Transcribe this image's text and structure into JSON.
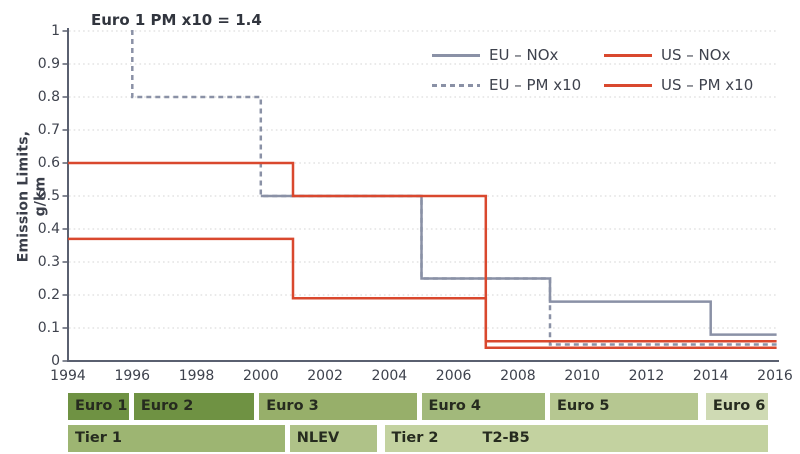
{
  "chart_data": {
    "type": "line",
    "title": "",
    "ylabel": "Emission Limits, g/km",
    "annotation": "Euro 1 PM x10 = 1.4",
    "xlim": [
      1994,
      2016
    ],
    "ylim": [
      0,
      1
    ],
    "x_ticks": [
      1994,
      1996,
      1998,
      2000,
      2002,
      2004,
      2006,
      2008,
      2010,
      2012,
      2014,
      2016
    ],
    "y_tick_values": [
      0,
      0.1,
      0.2,
      0.3,
      0.4,
      0.5,
      0.6,
      0.7,
      0.8,
      0.9,
      1
    ],
    "y_tick_labels": [
      "0",
      "0.1",
      "0.2",
      "0.3",
      "0.4",
      "0.5",
      "0.6",
      "0.7",
      "0.8",
      "0.9",
      "1"
    ],
    "grid": "horizontal dotted lines at every 0.1",
    "legend_position": "inside top-right, 2x2",
    "series": [
      {
        "name": "EU – NOx",
        "color": "#8A91A6",
        "dash": false,
        "points": [
          [
            2000,
            0.5
          ],
          [
            2005,
            0.5
          ],
          [
            2005,
            0.25
          ],
          [
            2009,
            0.25
          ],
          [
            2009,
            0.18
          ],
          [
            2014,
            0.18
          ],
          [
            2014,
            0.08
          ],
          [
            2016.05,
            0.08
          ]
        ]
      },
      {
        "name": "EU – PM x10",
        "color": "#8A91A6",
        "dash": true,
        "points": [
          [
            1996,
            1.003
          ],
          [
            1996,
            0.8
          ],
          [
            2000,
            0.8
          ],
          [
            2000,
            0.5
          ],
          [
            2005,
            0.5
          ],
          [
            2005,
            0.25
          ],
          [
            2009,
            0.25
          ],
          [
            2009,
            0.05
          ],
          [
            2016.05,
            0.05
          ]
        ],
        "note": "enters from above axis range; Euro 1 PM x10 = 1.4"
      },
      {
        "name": "US – PM x10",
        "color": "#D9482E",
        "dash": false,
        "points": [
          [
            1994,
            0.6
          ],
          [
            2001,
            0.6
          ],
          [
            2001,
            0.5
          ],
          [
            2007,
            0.5
          ],
          [
            2007,
            0.06
          ],
          [
            2016.05,
            0.06
          ]
        ]
      },
      {
        "name": "US – NOx",
        "color": "#D9482E",
        "dash": false,
        "points": [
          [
            1994,
            0.37
          ],
          [
            2001,
            0.37
          ],
          [
            2001,
            0.19
          ],
          [
            2007,
            0.19
          ],
          [
            2007,
            0.04
          ],
          [
            2016.05,
            0.04
          ]
        ]
      }
    ],
    "legend": {
      "items": [
        {
          "label": "EU – NOx",
          "swatch": "gray-solid"
        },
        {
          "label": "US – NOx",
          "swatch": "red-solid"
        },
        {
          "label": "EU – PM x10",
          "swatch": "gray-dashed"
        },
        {
          "label": "US – PM x10",
          "swatch": "red-solid"
        }
      ]
    },
    "timeline_bands": {
      "eu": [
        {
          "label": "Euro 1",
          "start": 1994.0,
          "end": 1995.9,
          "color": "#6F9243"
        },
        {
          "label": "Euro 2",
          "start": 1996.05,
          "end": 1999.8,
          "color": "#6F9243"
        },
        {
          "label": "Euro 3",
          "start": 1999.95,
          "end": 2004.85,
          "color": "#97AF6A"
        },
        {
          "label": "Euro 4",
          "start": 2005.0,
          "end": 2008.85,
          "color": "#A2B97B"
        },
        {
          "label": "Euro 5",
          "start": 2009.0,
          "end": 2013.6,
          "color": "#B6C791"
        },
        {
          "label": "Euro 6",
          "start": 2013.85,
          "end": 2015.78,
          "color": "#CFDAB4"
        }
      ],
      "us": [
        {
          "label": "Tier 1",
          "start": 1994.0,
          "end": 2000.75,
          "color": "#9DB572"
        },
        {
          "label": "NLEV",
          "start": 2000.9,
          "end": 2003.62,
          "color": "#AFC288"
        },
        {
          "label": "Tier 2",
          "start": 2003.85,
          "end": 2015.78,
          "color": "#C3D2A0",
          "label2": "T2-B5",
          "label2_year": 2006.9
        }
      ]
    }
  },
  "colors": {
    "eu_line": "#8A91A6",
    "us_line": "#D9482E",
    "axis": "#5A6070",
    "gridline": "#D5D5D5",
    "tick_text": "#3E424D",
    "band_text": "#262B1F",
    "background": "#FFFFFF"
  }
}
